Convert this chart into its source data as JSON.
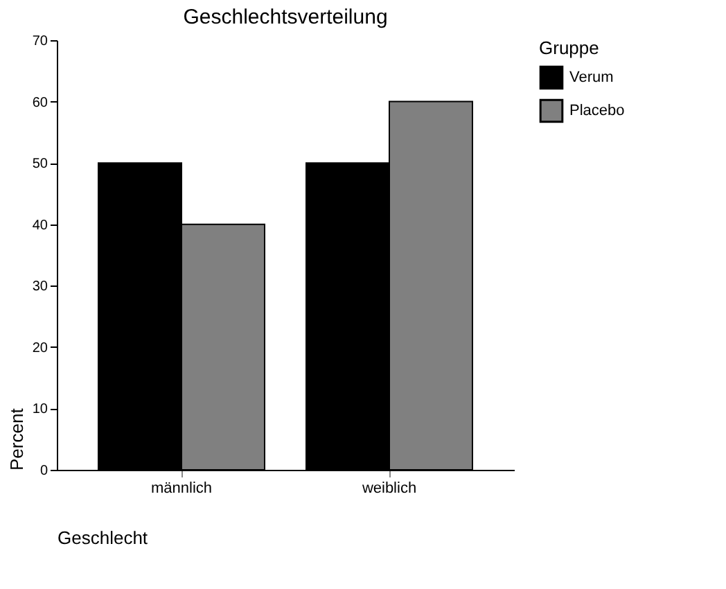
{
  "chart_data": {
    "type": "bar",
    "title": "Geschlechtsverteilung",
    "xlabel": "Geschlecht",
    "ylabel": "Percent",
    "legend_title": "Gruppe",
    "categories": [
      "männlich",
      "weiblich"
    ],
    "series": [
      {
        "name": "Verum",
        "color": "#000000",
        "values": [
          50,
          50
        ]
      },
      {
        "name": "Placebo",
        "color": "#808080",
        "values": [
          40,
          60
        ]
      }
    ],
    "ylim": [
      0,
      70
    ],
    "yticks": [
      0,
      10,
      20,
      30,
      40,
      50,
      60,
      70
    ],
    "grid": false,
    "legend": "right"
  }
}
